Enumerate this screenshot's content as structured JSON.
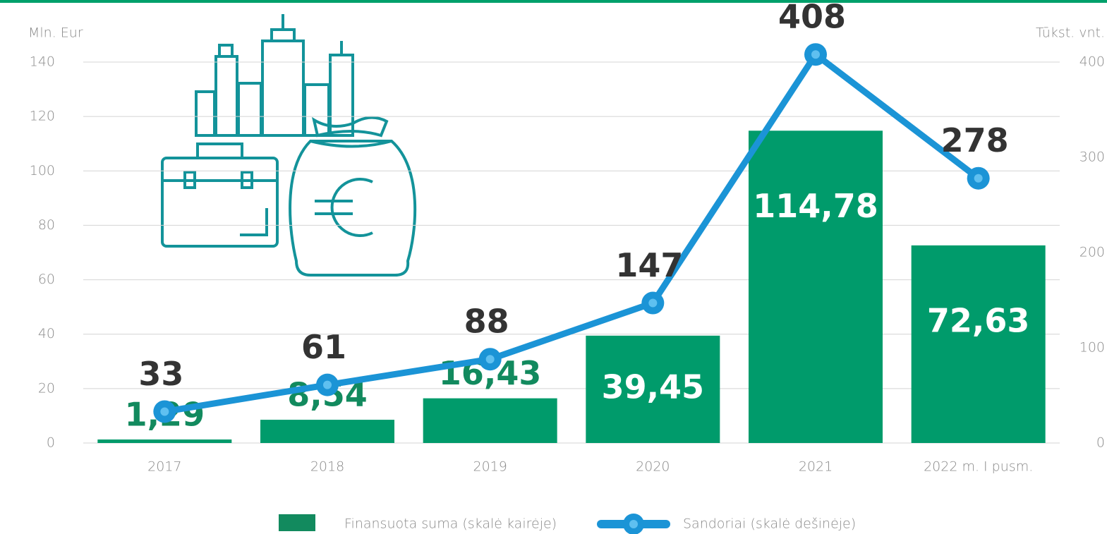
{
  "chart_data": {
    "type": "bar_line",
    "y_label": "Mln. Eur",
    "y2_label": "Tūkst. vnt.",
    "categories": [
      "2017",
      "2018",
      "2019",
      "2020",
      "2021",
      "2022 m. I pusm."
    ],
    "series": [
      {
        "name": "Finansuota suma (skalė kairėje)",
        "color": "#009b6b",
        "type": "bar",
        "values": [
          1.29,
          8.54,
          16.43,
          39.45,
          114.78,
          72.63
        ],
        "value_labels": [
          "1,29",
          "8,54",
          "16,43",
          "39,45",
          "114,78",
          "72,63"
        ]
      },
      {
        "name": "Sandoriai (skalė dešinėje)",
        "color": "#1b94d6",
        "type": "line",
        "axis": "y2",
        "values": [
          33,
          61,
          88,
          147,
          408,
          278
        ]
      }
    ],
    "ylim": [
      0,
      140
    ],
    "yticks": [
      0,
      20,
      40,
      60,
      80,
      100,
      120,
      140
    ],
    "y2lim": [
      0,
      400
    ],
    "y2ticks": [
      0,
      100,
      200,
      300,
      400
    ],
    "grid": true,
    "legend": "bottom"
  }
}
